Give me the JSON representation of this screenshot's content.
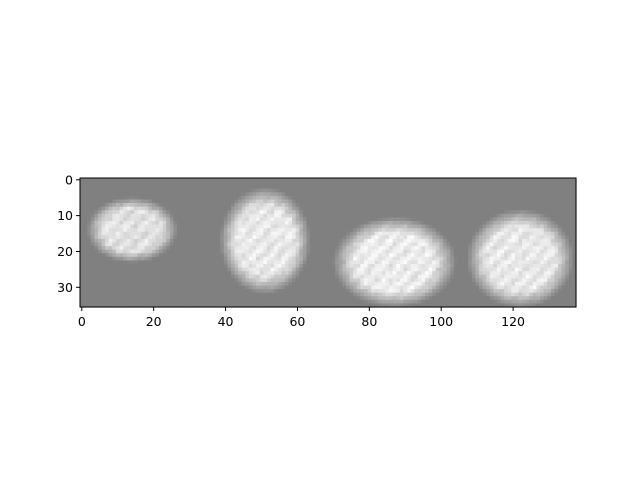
{
  "chart_data": {
    "type": "heatmap",
    "title": "",
    "xlabel": "",
    "ylabel": "",
    "colormap": "gray",
    "image_width": 138,
    "image_height": 36,
    "xlim": [
      -0.5,
      137.5
    ],
    "ylim": [
      35.5,
      -0.5
    ],
    "x_ticks": [
      0,
      20,
      40,
      60,
      80,
      100,
      120
    ],
    "y_ticks": [
      0,
      10,
      20,
      30
    ],
    "background_value": 0.5,
    "blobs": [
      {
        "cx": 14,
        "cy": 14,
        "rx": 11,
        "ry": 8,
        "peak": 0.92
      },
      {
        "cx": 51,
        "cy": 17,
        "rx": 11,
        "ry": 13,
        "peak": 0.95
      },
      {
        "cx": 87,
        "cy": 23,
        "rx": 15,
        "ry": 11,
        "peak": 0.96
      },
      {
        "cx": 122,
        "cy": 22,
        "rx": 13,
        "ry": 12,
        "peak": 0.95
      }
    ]
  }
}
